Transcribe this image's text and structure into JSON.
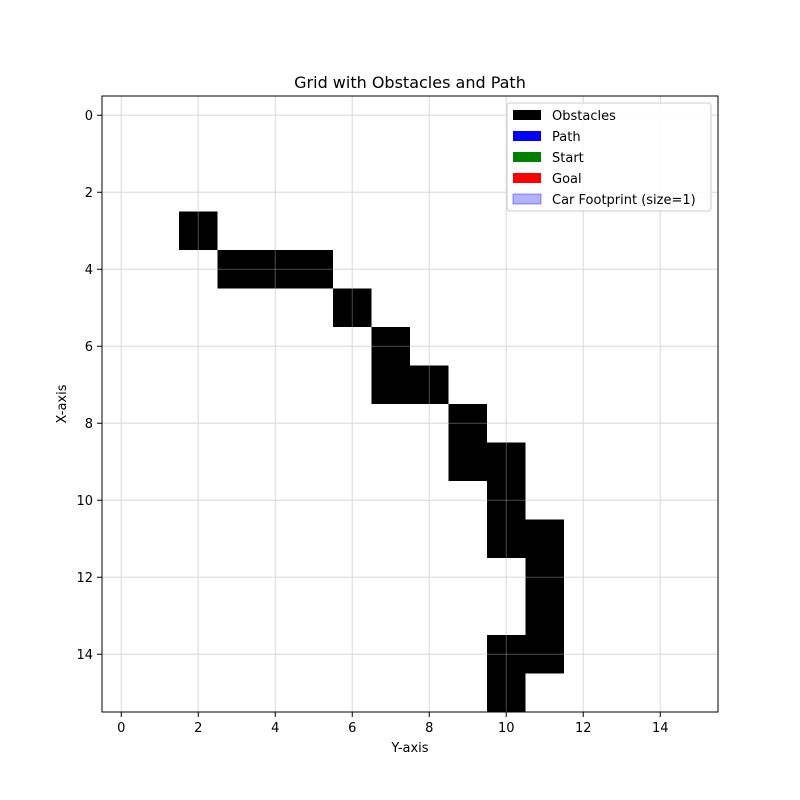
{
  "chart_data": {
    "type": "heatmap",
    "title": "Grid with Obstacles and Path",
    "xlabel": "Y-axis",
    "ylabel": "X-axis",
    "grid_size": 16,
    "xlim": [
      -0.5,
      15.5
    ],
    "ylim": [
      15.5,
      -0.5
    ],
    "x_ticks": [
      0,
      2,
      4,
      6,
      8,
      10,
      12,
      14
    ],
    "y_ticks": [
      0,
      2,
      4,
      6,
      8,
      10,
      12,
      14
    ],
    "grid": true,
    "legend_position": "top-right",
    "legend": [
      {
        "label": "Obstacles",
        "color": "#000000",
        "alpha": 1
      },
      {
        "label": "Path",
        "color": "#0000ff",
        "alpha": 1
      },
      {
        "label": "Start",
        "color": "#008000",
        "alpha": 1
      },
      {
        "label": "Goal",
        "color": "#ff0000",
        "alpha": 1
      },
      {
        "label": "Car Footprint (size=1)",
        "color": "#0000ff",
        "alpha": 0.3
      }
    ],
    "obstacles": [
      {
        "row": 3,
        "col": 2
      },
      {
        "row": 4,
        "col": 3
      },
      {
        "row": 4,
        "col": 4
      },
      {
        "row": 4,
        "col": 5
      },
      {
        "row": 5,
        "col": 6
      },
      {
        "row": 6,
        "col": 7
      },
      {
        "row": 7,
        "col": 7
      },
      {
        "row": 7,
        "col": 8
      },
      {
        "row": 8,
        "col": 9
      },
      {
        "row": 9,
        "col": 9
      },
      {
        "row": 9,
        "col": 10
      },
      {
        "row": 10,
        "col": 10
      },
      {
        "row": 11,
        "col": 10
      },
      {
        "row": 11,
        "col": 11
      },
      {
        "row": 12,
        "col": 11
      },
      {
        "row": 13,
        "col": 11
      },
      {
        "row": 14,
        "col": 10
      },
      {
        "row": 14,
        "col": 11
      },
      {
        "row": 15,
        "col": 10
      }
    ]
  }
}
